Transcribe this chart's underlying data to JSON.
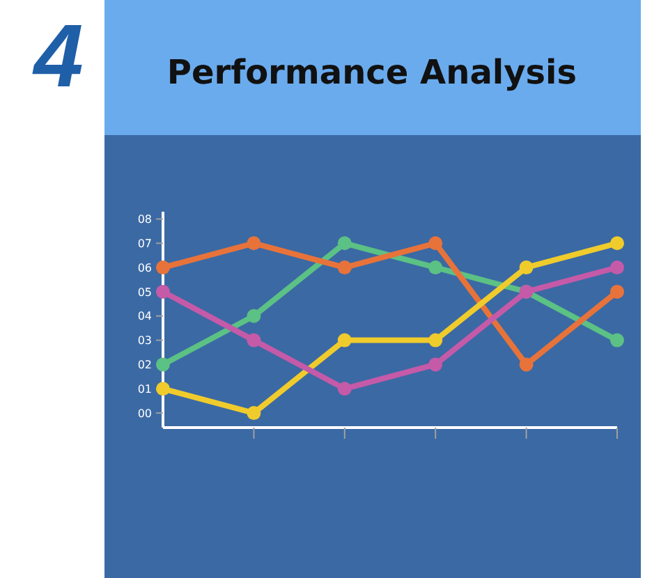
{
  "chart_data": {
    "type": "line",
    "title": "Performance Analysis",
    "annotations": [
      "4"
    ],
    "categories": [
      null,
      null,
      null,
      null,
      null,
      null
    ],
    "series": [
      {
        "color": "#5cc184",
        "values": [
          2,
          4,
          7,
          6,
          5,
          3
        ]
      },
      {
        "color": "#e8733a",
        "values": [
          6,
          7,
          6,
          7,
          2,
          5
        ]
      },
      {
        "color": "#f0cb2c",
        "values": [
          1,
          0,
          3,
          3,
          6,
          7
        ]
      },
      {
        "color": "#c45aa8",
        "values": [
          5,
          3,
          1,
          2,
          5,
          6
        ]
      }
    ],
    "ylim": [
      -0.6,
      8.3
    ],
    "yticks": [
      {
        "value": 0,
        "label": "00"
      },
      {
        "value": 1,
        "label": "01"
      },
      {
        "value": 2,
        "label": "02"
      },
      {
        "value": 3,
        "label": "03"
      },
      {
        "value": 4,
        "label": "04"
      },
      {
        "value": 5,
        "label": "05"
      },
      {
        "value": 6,
        "label": "06"
      },
      {
        "value": 7,
        "label": "07"
      },
      {
        "value": 8,
        "label": "08"
      }
    ],
    "marker": "circle",
    "line_style": "solid",
    "grid": false
  }
}
